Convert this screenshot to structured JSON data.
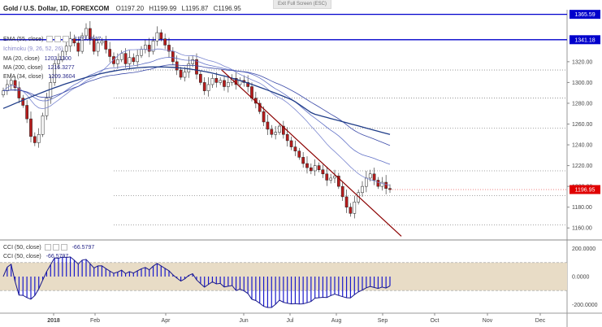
{
  "exit_fullscreen_label": "Exit Full Screen (ESC)",
  "title": "Gold / U.S. Dollar, 1D, FOREXCOM",
  "ohlc": {
    "o": "O1197.20",
    "h": "H1199.99",
    "l": "L1195.87",
    "c": "C1196.95"
  },
  "legends": [
    {
      "label": "EMA (55, close)",
      "value": "1217.3917"
    },
    {
      "label": "Ichimoku (9, 26, 52, 26)",
      "value": ""
    },
    {
      "label": "MA (20, close)",
      "value": "1203.1300"
    },
    {
      "label": "MA (200, close)",
      "value": "1216.3277"
    },
    {
      "label": "EMA (34, close)",
      "value": "1209.3604"
    }
  ],
  "cci_legends": [
    {
      "label": "CCI (50, close)",
      "value": "-66.5797"
    },
    {
      "label": "CCI (50, close)",
      "value": "-66.5797"
    }
  ],
  "colors": {
    "up": "#2e7d32",
    "down": "#b71c1c",
    "ema55": "#3b4aa8",
    "ema34": "#5f6fc6",
    "ma20": "#7a86d0",
    "ma200": "#1f3c88",
    "resistance_line": "#0000cc",
    "trendline": "#8b0000",
    "cci": "#1a1acc",
    "cci_band": "#e8dcc6",
    "current_price_bg": "#e00000",
    "resistance_label_bg": "#0000cc"
  },
  "chart_data": {
    "type": "candlestick",
    "title": "Gold / U.S. Dollar, 1D, FOREXCOM",
    "price_ylim": [
      1150,
      1370
    ],
    "price_ticks": [
      "1160.00",
      "1180.00",
      "1200.00",
      "1220.00",
      "1240.00",
      "1260.00",
      "1280.00",
      "1300.00",
      "1320.00"
    ],
    "x_labels": [
      "2018",
      "Feb",
      "Apr",
      "Jun",
      "Jul",
      "Aug",
      "Sep",
      "Oct",
      "Nov",
      "Dec"
    ],
    "horizontal_levels": [
      {
        "value": 1365.59,
        "label": "1365.59",
        "style": "solid"
      },
      {
        "value": 1341.18,
        "label": "1341.18",
        "style": "solid"
      },
      {
        "value": 1312,
        "label": "",
        "style": "dotted"
      },
      {
        "value": 1285,
        "label": "",
        "style": "dotted"
      },
      {
        "value": 1256,
        "label": "",
        "style": "dotted"
      },
      {
        "value": 1215,
        "label": "",
        "style": "dotted"
      },
      {
        "value": 1191,
        "label": "",
        "style": "dotted"
      },
      {
        "value": 1163,
        "label": "",
        "style": "dotted"
      }
    ],
    "current_price": {
      "value": 1196.95,
      "label": "1196.95"
    },
    "close_path": [
      1292,
      1298,
      1302,
      1295,
      1285,
      1278,
      1265,
      1248,
      1242,
      1250,
      1268,
      1285,
      1300,
      1318,
      1322,
      1330,
      1335,
      1342,
      1338,
      1330,
      1345,
      1352,
      1342,
      1330,
      1338,
      1340,
      1332,
      1325,
      1318,
      1322,
      1328,
      1318,
      1324,
      1320,
      1326,
      1332,
      1336,
      1330,
      1340,
      1348,
      1342,
      1336,
      1330,
      1320,
      1312,
      1305,
      1310,
      1318,
      1322,
      1308,
      1300,
      1292,
      1298,
      1304,
      1300,
      1302,
      1296,
      1300,
      1304,
      1298,
      1302,
      1300,
      1296,
      1285,
      1280,
      1272,
      1262,
      1255,
      1250,
      1252,
      1258,
      1250,
      1244,
      1238,
      1234,
      1228,
      1222,
      1218,
      1215,
      1220,
      1216,
      1212,
      1206,
      1208,
      1210,
      1200,
      1190,
      1180,
      1174,
      1185,
      1194,
      1200,
      1208,
      1212,
      1206,
      1200,
      1204,
      1198,
      1196.95
    ],
    "trendline": {
      "from": [
        1312,
        0.565
      ],
      "to": [
        1152,
        1.0
      ]
    },
    "cci": {
      "label": "CCI (50, close)",
      "ylim": [
        -250,
        250
      ],
      "ticks": [
        "200.0000",
        "0.0000",
        "-200.0000"
      ],
      "band": [
        -100,
        100
      ],
      "last_value": -66.5797
    }
  }
}
